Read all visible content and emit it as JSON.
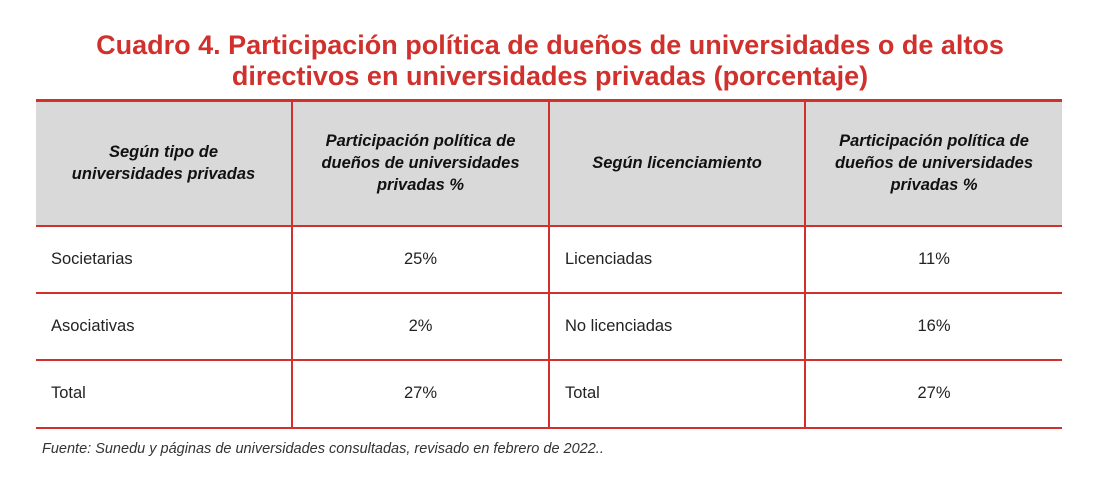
{
  "title": {
    "line1": "Cuadro 4. Participación política de dueños de universidades o de altos",
    "line2": "directivos en universidades privadas (porcentaje)"
  },
  "table": {
    "headers": [
      [
        "Según tipo de",
        "universidades privadas"
      ],
      [
        "Participación política de",
        "dueños de universidades",
        "privadas %"
      ],
      [
        "Según licenciamiento"
      ],
      [
        "Participación política de",
        "dueños de universidades",
        "privadas %"
      ]
    ],
    "rows": [
      [
        "Societarias",
        "25%",
        "Licenciadas",
        "11%"
      ],
      [
        "Asociativas",
        "2%",
        "No licenciadas",
        "16%"
      ],
      [
        "Total",
        "27%",
        "Total",
        "27%"
      ]
    ]
  },
  "source": "Fuente: Sunedu y páginas de universidades consultadas, revisado en febrero de 2022.."
}
